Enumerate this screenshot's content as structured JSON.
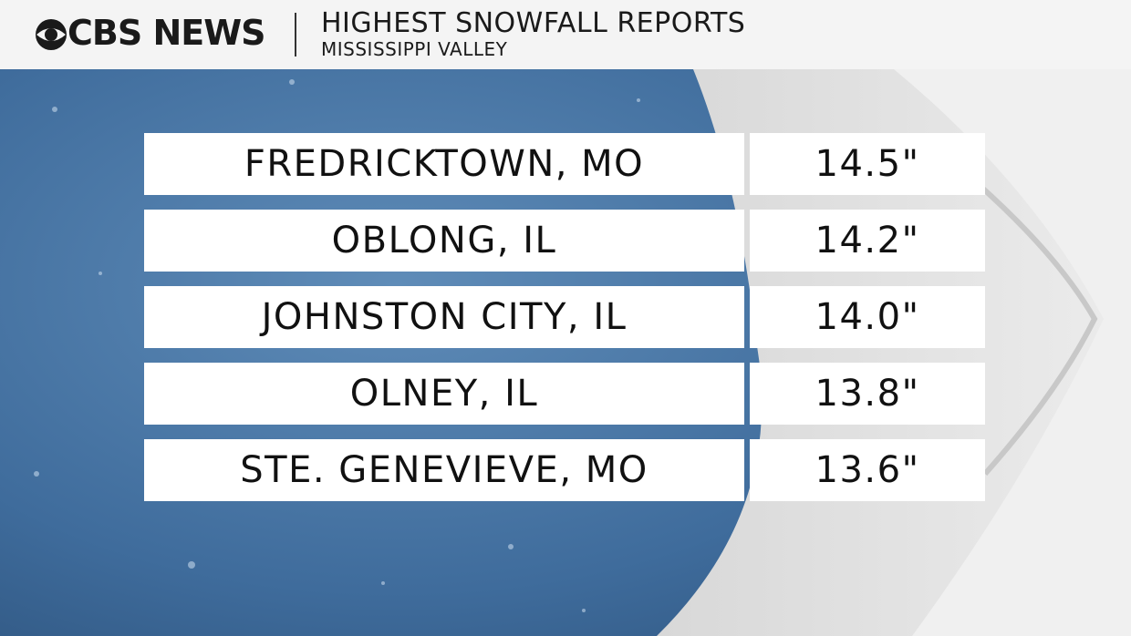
{
  "header": {
    "logo": "CBS NEWS",
    "title": "HIGHEST SNOWFALL REPORTS",
    "subtitle": "MISSISSIPPI VALLEY"
  },
  "table": {
    "rows": [
      [
        "FREDRICKTOWN, MO",
        "14.5\""
      ],
      [
        "OBLONG, IL",
        "14.2\""
      ],
      [
        "JOHNSTON CITY, IL",
        "14.0\""
      ],
      [
        "OLNEY, IL",
        "13.8\""
      ],
      [
        "STE. GENEVIEVE, MO",
        "13.6\""
      ]
    ]
  }
}
